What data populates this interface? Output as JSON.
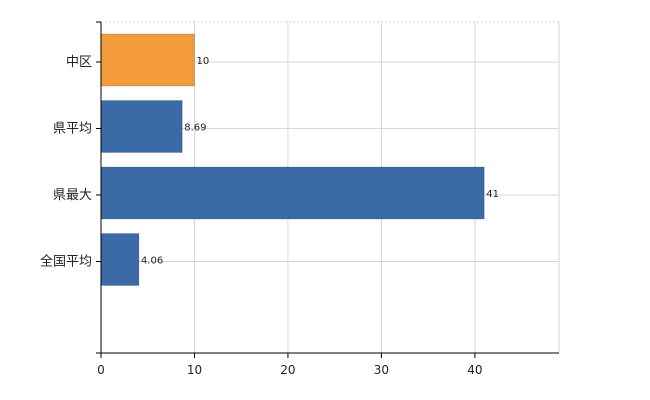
{
  "chart_data": {
    "type": "bar",
    "orientation": "horizontal",
    "categories": [
      "中区",
      "県平均",
      "県最大",
      "全国平均"
    ],
    "values": [
      10,
      8.69,
      41,
      4.06
    ],
    "data_labels": [
      "10",
      "8.69",
      "41",
      "4.06"
    ],
    "bar_colors": [
      "#f39a3b",
      "#3b6ba7",
      "#3b6ba7",
      "#3b6ba7"
    ],
    "title": "",
    "xlabel": "",
    "ylabel": "",
    "xlim": [
      0,
      49
    ],
    "x_ticks": [
      0,
      10,
      20,
      30,
      40
    ],
    "x_tick_labels": [
      "0",
      "10",
      "20",
      "30",
      "40"
    ],
    "grid": true,
    "grid_color": "#d7d7d7",
    "axis_color": "#000000",
    "legend": "none"
  }
}
